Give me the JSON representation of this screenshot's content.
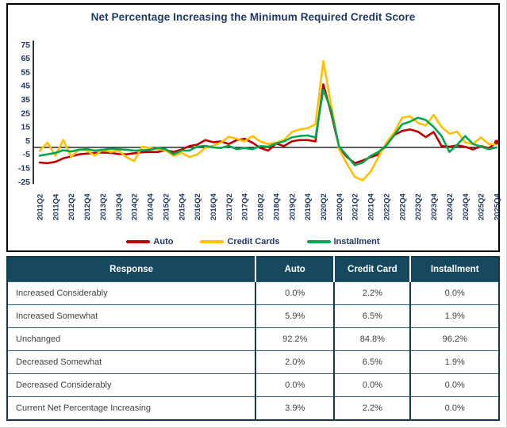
{
  "chart_data": {
    "type": "line",
    "title": "Net Percentage Increasing the Minimum Required Credit Score",
    "xlabel": "",
    "ylabel": "",
    "ylim": [
      -25,
      75
    ],
    "y_ticks": [
      75,
      65,
      55,
      45,
      35,
      25,
      15,
      5,
      -5,
      -15,
      -25
    ],
    "x_tick_step": 2,
    "grid": false,
    "legend_position": "bottom",
    "x": [
      "2011Q2",
      "2011Q3",
      "2011Q4",
      "2012Q1",
      "2012Q2",
      "2012Q3",
      "2012Q4",
      "2013Q1",
      "2013Q2",
      "2013Q3",
      "2013Q4",
      "2014Q1",
      "2014Q2",
      "2014Q3",
      "2014Q4",
      "2015Q1",
      "2015Q2",
      "2015Q3",
      "2015Q4",
      "2016Q1",
      "2016Q2",
      "2016Q3",
      "2016Q4",
      "2017Q1",
      "2017Q2",
      "2017Q3",
      "2017Q4",
      "2018Q1",
      "2018Q2",
      "2018Q3",
      "2018Q4",
      "2019Q1",
      "2019Q2",
      "2019Q3",
      "2019Q4",
      "2020Q1",
      "2020Q2",
      "2020Q3",
      "2020Q4",
      "2021Q1",
      "2021Q2",
      "2021Q3",
      "2021Q4",
      "2022Q1",
      "2022Q2",
      "2022Q3",
      "2022Q4",
      "2023Q1",
      "2023Q2",
      "2023Q3",
      "2023Q4",
      "2024Q1",
      "2024Q2",
      "2024Q3",
      "2024Q4",
      "2025Q1",
      "2025Q2",
      "2025Q3",
      "2025Q4"
    ],
    "series": [
      {
        "name": "Auto",
        "color": "#C00000",
        "values": [
          -11,
          -11.5,
          -10.5,
          -8,
          -6.5,
          -5,
          -4.5,
          -4,
          -3.7,
          -4,
          -4.8,
          -5,
          -4.2,
          -3.5,
          -3.3,
          -3.3,
          -2,
          -3.3,
          -1.5,
          1,
          2,
          5.4,
          3.8,
          4.4,
          2.5,
          5.4,
          6.3,
          3.5,
          -0.4,
          -2.3,
          2.9,
          1,
          4.4,
          5.4,
          5.4,
          4.4,
          46,
          25,
          0,
          -7,
          -11.5,
          -9.5,
          -7.1,
          -5.2,
          1.5,
          9,
          12,
          13.1,
          11.5,
          7.5,
          11.3,
          1,
          0.5,
          1.5,
          0.5,
          -1.5,
          1,
          -0.5,
          3.9
        ]
      },
      {
        "name": "Credit Cards",
        "color": "#FFC000",
        "values": [
          -2.5,
          3.5,
          -6,
          5.5,
          -7,
          -1.5,
          -2.3,
          -6,
          -1.7,
          -3.3,
          -2.3,
          -7,
          -10,
          0.6,
          -0.4,
          -1.3,
          -2.3,
          -6,
          -4,
          -7,
          -5.2,
          -0.4,
          1.2,
          3.5,
          7.7,
          6.3,
          4.4,
          8.3,
          4.4,
          2.5,
          3.5,
          5.4,
          11.2,
          13.1,
          14,
          16.9,
          63,
          31,
          -1.3,
          -12,
          -21.5,
          -24,
          -17.7,
          -7,
          3.5,
          11,
          21.7,
          22.7,
          17.9,
          16,
          23.7,
          15,
          10,
          11.5,
          3.5,
          2.5,
          7.3,
          2.5,
          2.2
        ]
      },
      {
        "name": "Installment",
        "color": "#00A651",
        "values": [
          -6,
          -5,
          -4,
          -2,
          -3,
          -1.7,
          -1.3,
          -2.3,
          -1.7,
          -1,
          -1.3,
          -1.7,
          -2.3,
          -2,
          -1.7,
          -0.4,
          -1.3,
          -5,
          -2.3,
          -2.3,
          0.6,
          1.2,
          0,
          -0.4,
          1.2,
          -1.3,
          -0.4,
          -1.3,
          1,
          0.6,
          2.9,
          4.4,
          7.3,
          8.3,
          8.7,
          7.3,
          42,
          27,
          0.6,
          -6,
          -13,
          -11,
          -6.2,
          -3.3,
          1.5,
          9.2,
          16.9,
          18.8,
          21.7,
          20,
          15,
          8.3,
          -3.3,
          2,
          8.3,
          2.5,
          0.6,
          -1.3,
          0
        ]
      }
    ]
  },
  "chart": {
    "title": "Net Percentage Increasing the Minimum Required Credit Score",
    "axis_color": "#000000",
    "label_color": "#1F3864"
  },
  "table": {
    "headers": [
      "Response",
      "Auto",
      "Credit Card",
      "Installment"
    ],
    "rows": [
      [
        "Increased Considerably",
        "0.0%",
        "2.2%",
        "0.0%"
      ],
      [
        "Increased Somewhat",
        "5.9%",
        "6.5%",
        "1.9%"
      ],
      [
        "Unchanged",
        "92.2%",
        "84.8%",
        "96.2%"
      ],
      [
        "Decreased Somewhat",
        "2.0%",
        "6.5%",
        "1.9%"
      ],
      [
        "Decreased Considerably",
        "0.0%",
        "0.0%",
        "0.0%"
      ],
      [
        "Current Net Percentage Increasing",
        "3.9%",
        "2.2%",
        "0.0%"
      ]
    ]
  }
}
